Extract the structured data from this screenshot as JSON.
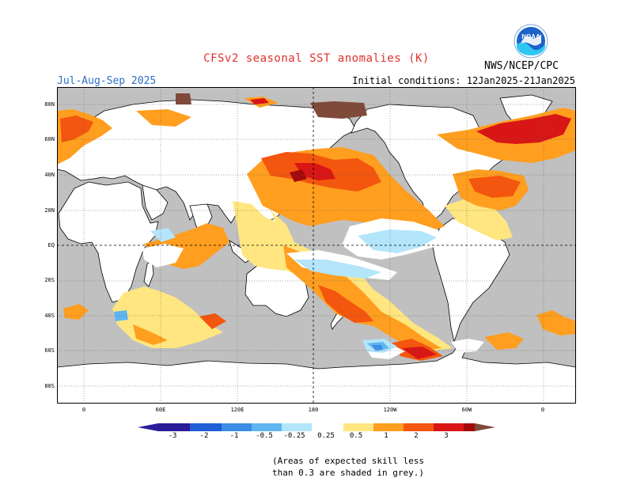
{
  "header": {
    "title": "CFSv2 seasonal SST anomalies (K)",
    "season": "Jul-Aug-Sep 2025",
    "initial_conditions": "Initial conditions: 12Jan2025-21Jan2025",
    "agency": "NWS/NCEP/CPC",
    "logo_text": "NOAA"
  },
  "map": {
    "lat_labels": [
      "80N",
      "60N",
      "40N",
      "20N",
      "EQ",
      "20S",
      "40S",
      "60S",
      "80S"
    ],
    "lon_labels": [
      "0",
      "60E",
      "120E",
      "180",
      "120W",
      "60W",
      "0"
    ],
    "colors": {
      "land": "#ffffff",
      "ocean_noskill": "#c0c0c0",
      "neutral": "#ffffff",
      "pos_025": "#ffe680",
      "pos_05": "#ff9e1f",
      "pos_1": "#f3560e",
      "pos_2": "#d91616",
      "pos_3": "#a50a0a",
      "pos_gt3": "#7f4a3a",
      "neg_025": "#b3e5fb",
      "neg_05": "#5fb5f0",
      "neg_1": "#3c8de6",
      "neg_2": "#1f5ed6",
      "neg_3": "#2b1c9a"
    }
  },
  "colorbar": {
    "labels": [
      "-3",
      "-2",
      "-1",
      "-0.5",
      "-0.25",
      "0.25",
      "0.5",
      "1",
      "2",
      "3"
    ]
  },
  "note": {
    "line1": "(Areas of expected skill less",
    "line2": "than 0.3 are shaded in grey.)"
  }
}
